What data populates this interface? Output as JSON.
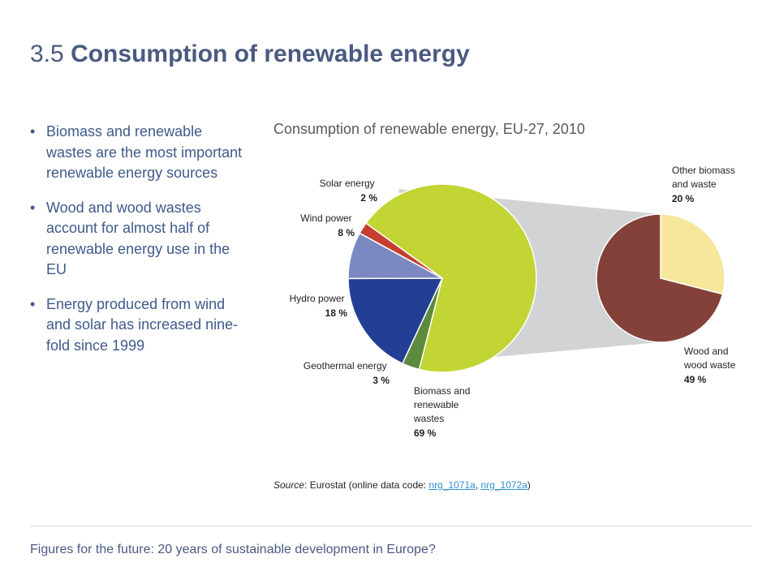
{
  "header": {
    "number": "3.5",
    "title": "Consumption of renewable energy"
  },
  "bullets": [
    "Biomass and renewable wastes are the most important renewable energy sources",
    "Wood and wood wastes account for almost half of renewable energy use in the EU",
    "Energy produced from wind and solar has increased nine-fold since 1999"
  ],
  "chart_data": {
    "type": "pie",
    "title": "Consumption of renewable energy, EU-27, 2010",
    "main_pie": [
      {
        "label": "Biomass and renewable wastes",
        "value_label": "69 %",
        "value": 69,
        "color": "#c2d534"
      },
      {
        "label": "Geothermal energy",
        "value_label": "3 %",
        "value": 3,
        "color": "#5d8a3d"
      },
      {
        "label": "Hydro power",
        "value_label": "18 %",
        "value": 18,
        "color": "#233f95"
      },
      {
        "label": "Wind power",
        "value_label": "8 %",
        "value": 8,
        "color": "#7b88c2"
      },
      {
        "label": "Solar energy",
        "value_label": "2 %",
        "value": 2,
        "color": "#c53f2e"
      }
    ],
    "breakdown_of": "Biomass and renewable wastes",
    "breakdown_pie": [
      {
        "label": "Other biomass and waste",
        "value_label": "20 %",
        "value": 20,
        "color": "#f6e79a"
      },
      {
        "label": "Wood and wood waste",
        "value_label": "49 %",
        "value": 49,
        "color": "#84413a"
      }
    ],
    "connector_color": "#d1d3d4"
  },
  "source": {
    "label": "Source",
    "text": ": Eurostat (online data code: ",
    "links": [
      "nrg_1071a",
      "nrg_1072a"
    ],
    "separator": ", ",
    "close": ")"
  },
  "footer": "Figures for the future: 20 years of sustainable development in Europe?"
}
